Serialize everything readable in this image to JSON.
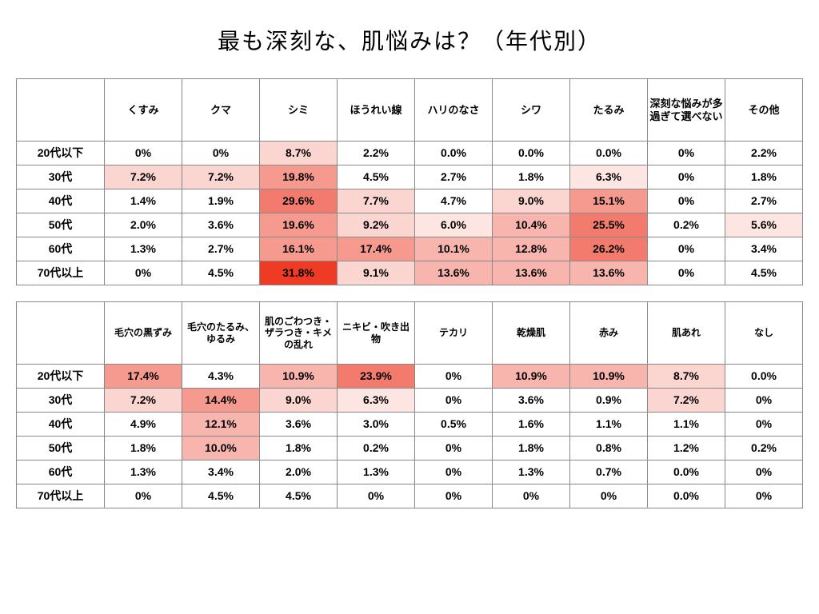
{
  "title": "最も深刻な、肌悩みは？（年代別）",
  "background_color": "#ffffff",
  "border_color": "#888888",
  "text_color": "#000000",
  "title_fontsize": 28,
  "header_fontsize": 13,
  "cell_fontsize": 14,
  "heat_scale": {
    "0": "#ffffff",
    "1": "#fde5e2",
    "2": "#fbd5d0",
    "3": "#f8b5ad",
    "4": "#f69a8f",
    "5": "#f37b6d",
    "6": "#ef3a24"
  },
  "row_labels": [
    "20代以下",
    "30代",
    "40代",
    "50代",
    "60代",
    "70代以上"
  ],
  "table1": {
    "columns": [
      "くすみ",
      "クマ",
      "シミ",
      "ほうれい線",
      "ハリのなさ",
      "シワ",
      "たるみ",
      "深刻な悩みが多過ぎて選べない",
      "その他"
    ],
    "rows": [
      [
        {
          "v": "0%",
          "h": 0
        },
        {
          "v": "0%",
          "h": 0
        },
        {
          "v": "8.7%",
          "h": 2
        },
        {
          "v": "2.2%",
          "h": 0
        },
        {
          "v": "0.0%",
          "h": 0
        },
        {
          "v": "0.0%",
          "h": 0
        },
        {
          "v": "0.0%",
          "h": 0
        },
        {
          "v": "0%",
          "h": 0
        },
        {
          "v": "2.2%",
          "h": 0
        }
      ],
      [
        {
          "v": "7.2%",
          "h": 2
        },
        {
          "v": "7.2%",
          "h": 2
        },
        {
          "v": "19.8%",
          "h": 4
        },
        {
          "v": "4.5%",
          "h": 0
        },
        {
          "v": "2.7%",
          "h": 0
        },
        {
          "v": "1.8%",
          "h": 0
        },
        {
          "v": "6.3%",
          "h": 1
        },
        {
          "v": "0%",
          "h": 0
        },
        {
          "v": "1.8%",
          "h": 0
        }
      ],
      [
        {
          "v": "1.4%",
          "h": 0
        },
        {
          "v": "1.9%",
          "h": 0
        },
        {
          "v": "29.6%",
          "h": 5
        },
        {
          "v": "7.7%",
          "h": 2
        },
        {
          "v": "4.7%",
          "h": 0
        },
        {
          "v": "9.0%",
          "h": 2
        },
        {
          "v": "15.1%",
          "h": 4
        },
        {
          "v": "0%",
          "h": 0
        },
        {
          "v": "2.7%",
          "h": 0
        }
      ],
      [
        {
          "v": "2.0%",
          "h": 0
        },
        {
          "v": "3.6%",
          "h": 0
        },
        {
          "v": "19.6%",
          "h": 4
        },
        {
          "v": "9.2%",
          "h": 2
        },
        {
          "v": "6.0%",
          "h": 1
        },
        {
          "v": "10.4%",
          "h": 3
        },
        {
          "v": "25.5%",
          "h": 5
        },
        {
          "v": "0.2%",
          "h": 0
        },
        {
          "v": "5.6%",
          "h": 1
        }
      ],
      [
        {
          "v": "1.3%",
          "h": 0
        },
        {
          "v": "2.7%",
          "h": 0
        },
        {
          "v": "16.1%",
          "h": 4
        },
        {
          "v": "17.4%",
          "h": 4
        },
        {
          "v": "10.1%",
          "h": 3
        },
        {
          "v": "12.8%",
          "h": 3
        },
        {
          "v": "26.2%",
          "h": 5
        },
        {
          "v": "0%",
          "h": 0
        },
        {
          "v": "3.4%",
          "h": 0
        }
      ],
      [
        {
          "v": "0%",
          "h": 0
        },
        {
          "v": "4.5%",
          "h": 0
        },
        {
          "v": "31.8%",
          "h": 6
        },
        {
          "v": "9.1%",
          "h": 2
        },
        {
          "v": "13.6%",
          "h": 3
        },
        {
          "v": "13.6%",
          "h": 3
        },
        {
          "v": "13.6%",
          "h": 3
        },
        {
          "v": "0%",
          "h": 0
        },
        {
          "v": "4.5%",
          "h": 0
        }
      ]
    ]
  },
  "table2": {
    "columns": [
      "毛穴の黒ずみ",
      "毛穴のたるみ、ゆるみ",
      "肌のごわつき・ザラつき・キメの乱れ",
      "ニキビ・吹き出物",
      "テカリ",
      "乾燥肌",
      "赤み",
      "肌あれ",
      "なし"
    ],
    "rows": [
      [
        {
          "v": "17.4%",
          "h": 4
        },
        {
          "v": "4.3%",
          "h": 0
        },
        {
          "v": "10.9%",
          "h": 3
        },
        {
          "v": "23.9%",
          "h": 5
        },
        {
          "v": "0%",
          "h": 0
        },
        {
          "v": "10.9%",
          "h": 3
        },
        {
          "v": "10.9%",
          "h": 3
        },
        {
          "v": "8.7%",
          "h": 2
        },
        {
          "v": "0.0%",
          "h": 0
        }
      ],
      [
        {
          "v": "7.2%",
          "h": 2
        },
        {
          "v": "14.4%",
          "h": 4
        },
        {
          "v": "9.0%",
          "h": 2
        },
        {
          "v": "6.3%",
          "h": 1
        },
        {
          "v": "0%",
          "h": 0
        },
        {
          "v": "3.6%",
          "h": 0
        },
        {
          "v": "0.9%",
          "h": 0
        },
        {
          "v": "7.2%",
          "h": 2
        },
        {
          "v": "0%",
          "h": 0
        }
      ],
      [
        {
          "v": "4.9%",
          "h": 0
        },
        {
          "v": "12.1%",
          "h": 3
        },
        {
          "v": "3.6%",
          "h": 0
        },
        {
          "v": "3.0%",
          "h": 0
        },
        {
          "v": "0.5%",
          "h": 0
        },
        {
          "v": "1.6%",
          "h": 0
        },
        {
          "v": "1.1%",
          "h": 0
        },
        {
          "v": "1.1%",
          "h": 0
        },
        {
          "v": "0%",
          "h": 0
        }
      ],
      [
        {
          "v": "1.8%",
          "h": 0
        },
        {
          "v": "10.0%",
          "h": 3
        },
        {
          "v": "1.8%",
          "h": 0
        },
        {
          "v": "0.2%",
          "h": 0
        },
        {
          "v": "0%",
          "h": 0
        },
        {
          "v": "1.8%",
          "h": 0
        },
        {
          "v": "0.8%",
          "h": 0
        },
        {
          "v": "1.2%",
          "h": 0
        },
        {
          "v": "0.2%",
          "h": 0
        }
      ],
      [
        {
          "v": "1.3%",
          "h": 0
        },
        {
          "v": "3.4%",
          "h": 0
        },
        {
          "v": "2.0%",
          "h": 0
        },
        {
          "v": "1.3%",
          "h": 0
        },
        {
          "v": "0%",
          "h": 0
        },
        {
          "v": "1.3%",
          "h": 0
        },
        {
          "v": "0.7%",
          "h": 0
        },
        {
          "v": "0.0%",
          "h": 0
        },
        {
          "v": "0%",
          "h": 0
        }
      ],
      [
        {
          "v": "0%",
          "h": 0
        },
        {
          "v": "4.5%",
          "h": 0
        },
        {
          "v": "4.5%",
          "h": 0
        },
        {
          "v": "0%",
          "h": 0
        },
        {
          "v": "0%",
          "h": 0
        },
        {
          "v": "0%",
          "h": 0
        },
        {
          "v": "0%",
          "h": 0
        },
        {
          "v": "0.0%",
          "h": 0
        },
        {
          "v": "0%",
          "h": 0
        }
      ]
    ]
  }
}
